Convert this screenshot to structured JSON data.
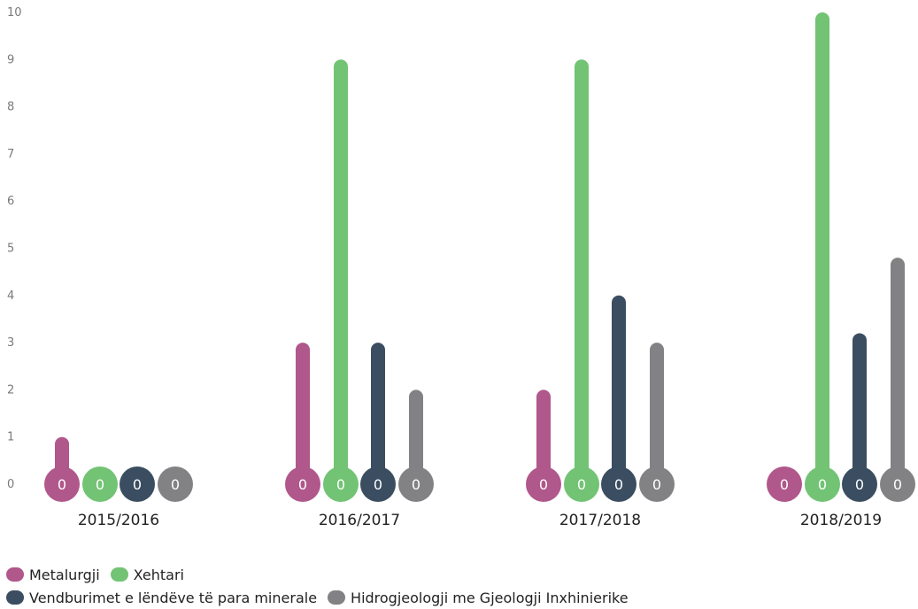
{
  "chart_data": {
    "type": "bar",
    "categories": [
      "2015/2016",
      "2016/2017",
      "2017/2018",
      "2018/2019"
    ],
    "series": [
      {
        "name": "Metalurgji",
        "color": "#b0578b",
        "values": [
          1,
          3,
          2,
          0
        ]
      },
      {
        "name": "Xehtari",
        "color": "#72c374",
        "values": [
          0,
          9,
          9,
          10
        ]
      },
      {
        "name": "Vendburimet e lëndëve të para minerale",
        "color": "#3b4d60",
        "values": [
          0,
          3,
          4,
          3.2
        ]
      },
      {
        "name": "Hidrogjeologji me Gjeologji Inxhinierike",
        "color": "#828285",
        "values": [
          0,
          2,
          3,
          4.8
        ]
      }
    ],
    "bulb_labels": [
      "0",
      "0",
      "0",
      "0"
    ],
    "yticks": [
      "0",
      "1",
      "2",
      "3",
      "4",
      "5",
      "6",
      "7",
      "8",
      "9",
      "10"
    ],
    "ylim": [
      0,
      10
    ],
    "grid": false,
    "legend_position": "bottom-left"
  }
}
